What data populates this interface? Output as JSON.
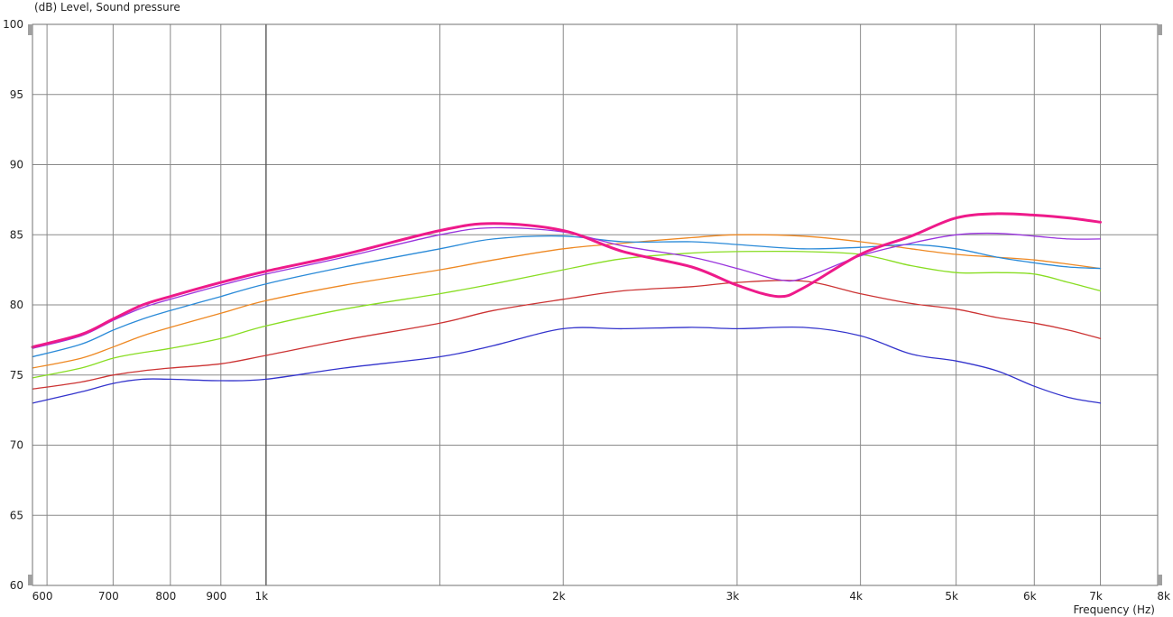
{
  "chart_data": {
    "type": "line",
    "title": "",
    "ylabel": "(dB)  Level, Sound pressure",
    "xlabel": "Frequency  (Hz)",
    "x_scale": "log",
    "xlim": [
      580,
      8000
    ],
    "ylim": [
      60,
      100
    ],
    "grid": true,
    "y_ticks": [
      60,
      65,
      70,
      75,
      80,
      85,
      90,
      95,
      100
    ],
    "x_ticks": [
      {
        "value": 600,
        "label": "600",
        "major": false
      },
      {
        "value": 700,
        "label": "700",
        "major": false
      },
      {
        "value": 800,
        "label": "800",
        "major": false
      },
      {
        "value": 900,
        "label": "900",
        "major": false
      },
      {
        "value": 1000,
        "label": "1k",
        "major": true
      },
      {
        "value": 1500,
        "label": "",
        "major": false
      },
      {
        "value": 2000,
        "label": "2k",
        "major": false
      },
      {
        "value": 3000,
        "label": "3k",
        "major": false
      },
      {
        "value": 4000,
        "label": "4k",
        "major": false
      },
      {
        "value": 5000,
        "label": "5k",
        "major": false
      },
      {
        "value": 6000,
        "label": "6k",
        "major": false
      },
      {
        "value": 7000,
        "label": "7k",
        "major": false
      },
      {
        "value": 8000,
        "label": "8k",
        "major": false
      }
    ],
    "series": [
      {
        "color": "#3333cc",
        "width": 1.3,
        "x": [
          580,
          650,
          700,
          750,
          800,
          900,
          1000,
          1200,
          1500,
          1700,
          2000,
          2300,
          2700,
          3000,
          3500,
          4000,
          4500,
          5000,
          5500,
          6000,
          6500,
          7000
        ],
        "y": [
          73.0,
          73.8,
          74.4,
          74.7,
          74.7,
          74.6,
          74.7,
          75.5,
          76.3,
          77.1,
          78.3,
          78.3,
          78.4,
          78.3,
          78.4,
          77.8,
          76.5,
          76.0,
          75.3,
          74.2,
          73.4,
          73.0
        ]
      },
      {
        "color": "#cc3333",
        "width": 1.3,
        "x": [
          580,
          650,
          700,
          750,
          800,
          900,
          1000,
          1200,
          1500,
          1700,
          2000,
          2300,
          2700,
          3000,
          3500,
          4000,
          4500,
          5000,
          5500,
          6000,
          6500,
          7000
        ],
        "y": [
          74.0,
          74.5,
          75.0,
          75.3,
          75.5,
          75.8,
          76.4,
          77.5,
          78.7,
          79.6,
          80.4,
          81.0,
          81.3,
          81.6,
          81.7,
          80.8,
          80.1,
          79.7,
          79.1,
          78.7,
          78.2,
          77.6
        ]
      },
      {
        "color": "#88dd22",
        "width": 1.3,
        "x": [
          580,
          650,
          700,
          750,
          800,
          900,
          1000,
          1200,
          1500,
          1700,
          2000,
          2300,
          2700,
          3000,
          3500,
          4000,
          4500,
          5000,
          5500,
          6000,
          6500,
          7000
        ],
        "y": [
          74.8,
          75.5,
          76.2,
          76.6,
          76.9,
          77.6,
          78.5,
          79.7,
          80.8,
          81.5,
          82.5,
          83.3,
          83.7,
          83.8,
          83.8,
          83.6,
          82.8,
          82.3,
          82.3,
          82.2,
          81.6,
          81.0
        ]
      },
      {
        "color": "#ee8822",
        "width": 1.3,
        "x": [
          580,
          650,
          700,
          750,
          800,
          900,
          1000,
          1200,
          1500,
          1700,
          2000,
          2300,
          2700,
          3000,
          3500,
          4000,
          4500,
          5000,
          5500,
          6000,
          6500,
          7000
        ],
        "y": [
          75.5,
          76.2,
          77.0,
          77.8,
          78.4,
          79.4,
          80.3,
          81.4,
          82.5,
          83.2,
          84.0,
          84.4,
          84.8,
          85.0,
          84.9,
          84.5,
          84.0,
          83.6,
          83.4,
          83.2,
          82.9,
          82.6
        ]
      },
      {
        "color": "#2a8ad8",
        "width": 1.3,
        "x": [
          580,
          650,
          700,
          750,
          800,
          900,
          1000,
          1200,
          1500,
          1700,
          2000,
          2300,
          2700,
          3000,
          3500,
          4000,
          4500,
          5000,
          5500,
          6000,
          6500,
          7000
        ],
        "y": [
          76.3,
          77.2,
          78.2,
          79.0,
          79.6,
          80.6,
          81.5,
          82.7,
          84.0,
          84.7,
          84.9,
          84.5,
          84.5,
          84.3,
          84.0,
          84.1,
          84.3,
          84.0,
          83.4,
          83.0,
          82.7,
          82.6
        ]
      },
      {
        "color": "#9933dd",
        "width": 1.3,
        "x": [
          580,
          650,
          700,
          750,
          800,
          900,
          1000,
          1200,
          1500,
          1700,
          2000,
          2300,
          2700,
          3000,
          3300,
          3500,
          4000,
          4500,
          5000,
          5500,
          6000,
          6500,
          7000
        ],
        "y": [
          76.9,
          77.8,
          78.9,
          79.8,
          80.4,
          81.4,
          82.2,
          83.4,
          85.0,
          85.5,
          85.2,
          84.2,
          83.4,
          82.6,
          81.8,
          81.9,
          83.5,
          84.4,
          85.0,
          85.1,
          84.9,
          84.7,
          84.7
        ]
      },
      {
        "color": "#ee1a8a",
        "width": 3,
        "x": [
          580,
          650,
          700,
          750,
          800,
          900,
          1000,
          1200,
          1500,
          1700,
          2000,
          2300,
          2700,
          3000,
          3300,
          3500,
          4000,
          4500,
          5000,
          5500,
          6000,
          6500,
          7000
        ],
        "y": [
          77.0,
          77.9,
          79.0,
          80.0,
          80.6,
          81.6,
          82.4,
          83.6,
          85.3,
          85.8,
          85.3,
          83.8,
          82.7,
          81.4,
          80.6,
          81.2,
          83.6,
          84.9,
          86.2,
          86.5,
          86.4,
          86.2,
          85.9
        ]
      }
    ]
  }
}
